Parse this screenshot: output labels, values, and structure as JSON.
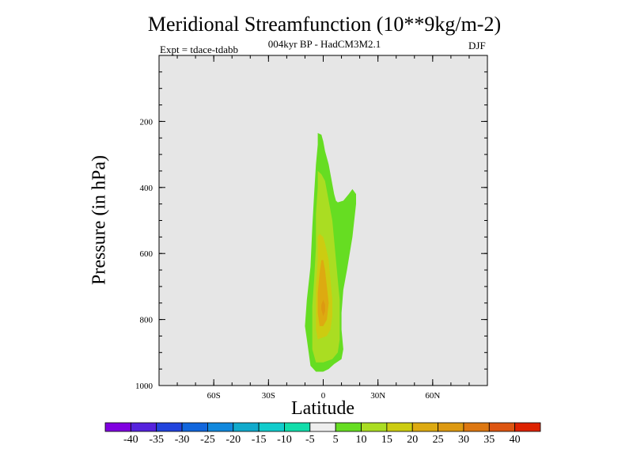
{
  "chart_data": {
    "type": "contour",
    "title": "Meridional Streamfunction (10**9kg/m-2)",
    "subtitle": "004kyr BP - HadCM3M2.1",
    "experiment": "Expt = tdace-tdabb",
    "season": "DJF",
    "xlabel": "Latitude",
    "ylabel": "Pressure (in hPa)",
    "xlim": [
      -90,
      90
    ],
    "ylim": [
      1000,
      0
    ],
    "x_ticks": [
      {
        "value": -60,
        "label": "60S"
      },
      {
        "value": -30,
        "label": "30S"
      },
      {
        "value": 0,
        "label": "0"
      },
      {
        "value": 30,
        "label": "30N"
      },
      {
        "value": 60,
        "label": "60N"
      }
    ],
    "y_ticks": [
      {
        "value": 200,
        "label": "200"
      },
      {
        "value": 400,
        "label": "400"
      },
      {
        "value": 600,
        "label": "600"
      },
      {
        "value": 800,
        "label": "800"
      },
      {
        "value": 1000,
        "label": "1000"
      }
    ],
    "background_color": "#e6e6e6",
    "contour_regions": [
      {
        "level": "5-10",
        "color": "#66dd22",
        "polygon": [
          [
            -4,
            958
          ],
          [
            -7,
            940
          ],
          [
            -8,
            900
          ],
          [
            -9,
            860
          ],
          [
            -10,
            820
          ],
          [
            -9,
            740
          ],
          [
            -7,
            640
          ],
          [
            -6,
            520
          ],
          [
            -5,
            420
          ],
          [
            -4,
            330
          ],
          [
            -3,
            270
          ],
          [
            -3,
            235
          ],
          [
            -1,
            240
          ],
          [
            0,
            260
          ],
          [
            1,
            290
          ],
          [
            3,
            330
          ],
          [
            4,
            360
          ],
          [
            5,
            390
          ],
          [
            6,
            420
          ],
          [
            7,
            440
          ],
          [
            8,
            445
          ],
          [
            11,
            440
          ],
          [
            14,
            420
          ],
          [
            16,
            405
          ],
          [
            18,
            420
          ],
          [
            18,
            450
          ],
          [
            16,
            550
          ],
          [
            13,
            650
          ],
          [
            11,
            710
          ],
          [
            10,
            780
          ],
          [
            10,
            830
          ],
          [
            11,
            890
          ],
          [
            10,
            920
          ],
          [
            6,
            935
          ],
          [
            3,
            950
          ],
          [
            0,
            958
          ],
          [
            -4,
            958
          ]
        ]
      },
      {
        "level": "10-15",
        "color": "#aadd22",
        "polygon": [
          [
            -4,
            930
          ],
          [
            -6,
            890
          ],
          [
            -6,
            830
          ],
          [
            -6,
            760
          ],
          [
            -5,
            680
          ],
          [
            -4,
            580
          ],
          [
            -4,
            480
          ],
          [
            -3,
            400
          ],
          [
            -3,
            350
          ],
          [
            -1,
            360
          ],
          [
            1,
            380
          ],
          [
            2,
            410
          ],
          [
            3,
            440
          ],
          [
            5,
            500
          ],
          [
            6,
            560
          ],
          [
            7,
            620
          ],
          [
            8,
            680
          ],
          [
            9,
            740
          ],
          [
            9,
            800
          ],
          [
            9,
            860
          ],
          [
            8,
            900
          ],
          [
            5,
            920
          ],
          [
            0,
            930
          ],
          [
            -4,
            930
          ]
        ]
      },
      {
        "level": "15-20",
        "color": "#cccc11",
        "polygon": [
          [
            -3,
            860
          ],
          [
            -4,
            830
          ],
          [
            -4,
            780
          ],
          [
            -4,
            700
          ],
          [
            -3,
            620
          ],
          [
            -3,
            550
          ],
          [
            -2,
            540
          ],
          [
            0,
            550
          ],
          [
            1,
            570
          ],
          [
            3,
            620
          ],
          [
            4,
            680
          ],
          [
            5,
            740
          ],
          [
            5,
            790
          ],
          [
            4,
            830
          ],
          [
            2,
            850
          ],
          [
            -3,
            860
          ]
        ]
      },
      {
        "level": "20-25",
        "color": "#ddaa11",
        "polygon": [
          [
            -2,
            820
          ],
          [
            -3,
            780
          ],
          [
            -3,
            720
          ],
          [
            -2,
            660
          ],
          [
            -1,
            620
          ],
          [
            0,
            620
          ],
          [
            1,
            650
          ],
          [
            2,
            700
          ],
          [
            3,
            750
          ],
          [
            2,
            800
          ],
          [
            0,
            820
          ],
          [
            -2,
            820
          ]
        ]
      },
      {
        "level": "25-30",
        "color": "#dd9911",
        "polygon": [
          [
            0,
            790
          ],
          [
            -1,
            770
          ],
          [
            -1,
            755
          ],
          [
            0,
            740
          ],
          [
            1,
            755
          ],
          [
            1,
            775
          ],
          [
            0,
            790
          ]
        ]
      }
    ],
    "colorbar": {
      "labels": [
        "-40",
        "-35",
        "-30",
        "-25",
        "-20",
        "-15",
        "-10",
        "-5",
        "5",
        "10",
        "15",
        "20",
        "25",
        "30",
        "35",
        "40"
      ],
      "colors": [
        "#8000e0",
        "#5522dd",
        "#2244dd",
        "#1166dd",
        "#1188dd",
        "#11aacc",
        "#11cccc",
        "#11ddaa",
        "#eeeeee",
        "#66dd22",
        "#aadd22",
        "#cccc11",
        "#ddaa11",
        "#dd9911",
        "#dd7711",
        "#dd5511",
        "#dd2200"
      ]
    }
  }
}
